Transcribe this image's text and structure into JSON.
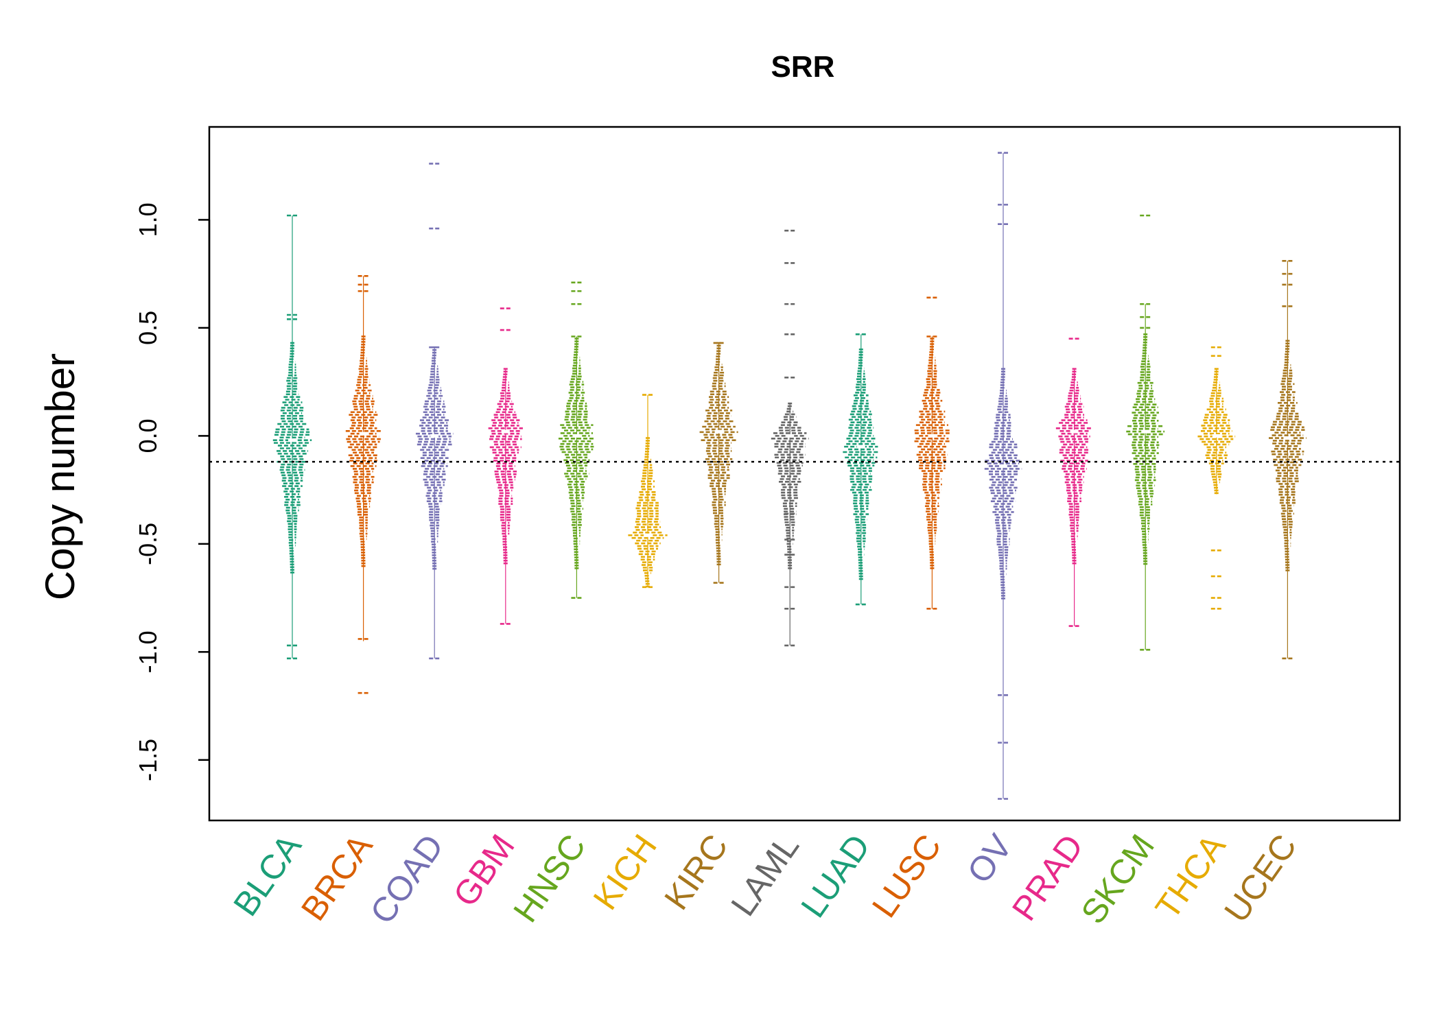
{
  "chart_data": {
    "type": "beeswarm",
    "title": "SRR",
    "xlabel": "",
    "ylabel": "Copy number",
    "ylim": [
      -1.78,
      1.43
    ],
    "yticks": [
      -1.5,
      -1.0,
      -0.5,
      0.0,
      0.5,
      1.0
    ],
    "ytick_labels": [
      "-1.5",
      "-1.0",
      "-0.5",
      "0.0",
      "0.5",
      "1.0"
    ],
    "reference_line": -0.12,
    "grid": false,
    "legend": "none",
    "categories": [
      "BLCA",
      "BRCA",
      "COAD",
      "GBM",
      "HNSC",
      "KICH",
      "KIRC",
      "LAML",
      "LUAD",
      "LUSC",
      "OV",
      "PRAD",
      "SKCM",
      "THCA",
      "UCEC"
    ],
    "colors": [
      "#1b9e77",
      "#d95f02",
      "#7570b3",
      "#e7298a",
      "#66a61e",
      "#e6ab02",
      "#a6761d",
      "#666666",
      "#1b9e77",
      "#d95f02",
      "#7570b3",
      "#e7298a",
      "#66a61e",
      "#e6ab02",
      "#a6761d"
    ],
    "series": [
      {
        "category": "BLCA",
        "min": -1.03,
        "max": 1.02,
        "center": -0.02,
        "outliers": [
          1.02,
          0.56,
          0.54,
          -0.97,
          -1.03
        ]
      },
      {
        "category": "BRCA",
        "min": -0.95,
        "max": 0.74,
        "center": 0.01,
        "outliers": [
          0.74,
          0.7,
          0.67,
          -0.94,
          -1.19
        ]
      },
      {
        "category": "COAD",
        "min": -1.03,
        "max": 0.41,
        "center": 0.0,
        "outliers": [
          1.26,
          0.96,
          0.41,
          -1.03
        ]
      },
      {
        "category": "GBM",
        "min": -0.87,
        "max": 0.31,
        "center": 0.02,
        "outliers": [
          0.59,
          0.49,
          -0.87
        ]
      },
      {
        "category": "HNSC",
        "min": -0.75,
        "max": 0.46,
        "center": 0.0,
        "outliers": [
          0.71,
          0.67,
          0.61,
          0.46,
          -0.75
        ]
      },
      {
        "category": "KICH",
        "min": -0.7,
        "max": 0.19,
        "center": -0.46,
        "outliers": [
          0.19,
          -0.7
        ]
      },
      {
        "category": "KIRC",
        "min": -0.68,
        "max": 0.43,
        "center": 0.02,
        "outliers": [
          0.43,
          -0.68
        ]
      },
      {
        "category": "LAML",
        "min": -0.97,
        "max": 0.15,
        "center": 0.0,
        "outliers": [
          0.95,
          0.8,
          0.61,
          0.47,
          0.27,
          -0.36,
          -0.48,
          -0.55,
          -0.7,
          -0.8,
          -0.97
        ]
      },
      {
        "category": "LUAD",
        "min": -0.78,
        "max": 0.47,
        "center": -0.05,
        "outliers": [
          0.47,
          -0.78
        ]
      },
      {
        "category": "LUSC",
        "min": -0.8,
        "max": 0.46,
        "center": 0.0,
        "outliers": [
          0.64,
          0.46,
          -0.8
        ]
      },
      {
        "category": "OV",
        "min": -1.68,
        "max": 1.31,
        "center": -0.14,
        "outliers": [
          1.31,
          1.07,
          0.98,
          -1.2,
          -1.42,
          -1.68
        ]
      },
      {
        "category": "PRAD",
        "min": -0.88,
        "max": 0.31,
        "center": 0.02,
        "outliers": [
          0.45,
          -0.88
        ]
      },
      {
        "category": "SKCM",
        "min": -0.99,
        "max": 0.61,
        "center": 0.02,
        "outliers": [
          1.02,
          0.61,
          0.55,
          0.5,
          -0.99
        ]
      },
      {
        "category": "THCA",
        "min": -0.27,
        "max": 0.31,
        "center": 0.0,
        "outliers": [
          0.41,
          0.37,
          -0.53,
          -0.65,
          -0.75,
          -0.8
        ]
      },
      {
        "category": "UCEC",
        "min": -1.03,
        "max": 0.81,
        "center": -0.01,
        "outliers": [
          0.81,
          0.75,
          0.7,
          0.6,
          -1.03
        ]
      }
    ]
  }
}
